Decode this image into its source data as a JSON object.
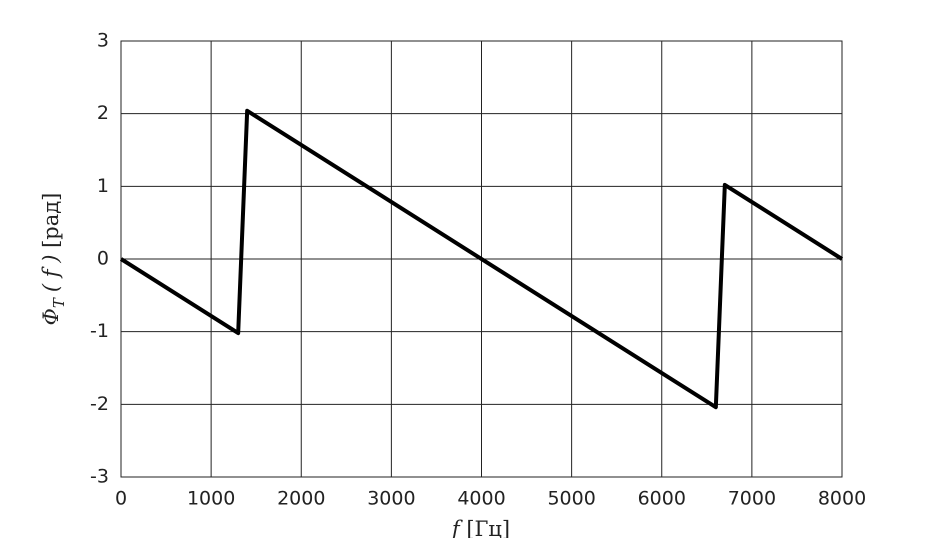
{
  "chart_data": {
    "type": "line",
    "x_label": {
      "symbol": "f",
      "unit": "[Гц]"
    },
    "y_label": {
      "symbol": "Φ",
      "subscript": "T",
      "argument": "( f )",
      "unit": "[рад]"
    },
    "x": [
      0,
      1300,
      1400,
      6600,
      6700,
      8000
    ],
    "series": [
      {
        "color": "#000000",
        "values": [
          0,
          -1.02,
          2.04,
          -2.04,
          1.02,
          0
        ]
      }
    ],
    "xlim": [
      0,
      8000
    ],
    "xticks": [
      0,
      1000,
      2000,
      3000,
      4000,
      5000,
      6000,
      7000,
      8000
    ],
    "ylim": [
      -3,
      3
    ],
    "yticks": [
      -3,
      -2,
      -1,
      0,
      1,
      2,
      3
    ],
    "grid": true
  }
}
